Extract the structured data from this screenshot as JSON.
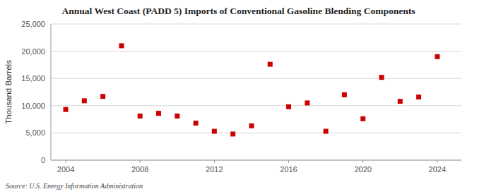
{
  "chart_data": {
    "type": "scatter",
    "title": "Annual West Coast (PADD 5) Imports of Conventional Gasoline Blending Components",
    "y_label": "Thousand Barrels",
    "source": "Source: U.S. Energy Information Administration",
    "x": [
      2004,
      2005,
      2006,
      2007,
      2008,
      2009,
      2010,
      2011,
      2012,
      2013,
      2014,
      2015,
      2016,
      2017,
      2018,
      2019,
      2020,
      2021,
      2022,
      2023,
      2024
    ],
    "values": [
      9300,
      10900,
      11700,
      21000,
      8100,
      8600,
      8100,
      6800,
      5300,
      4800,
      6300,
      17600,
      9800,
      10500,
      5300,
      12000,
      7600,
      15200,
      10800,
      11600,
      19000
    ],
    "color": "#cc0000",
    "marker": "square",
    "xlim": [
      2003.2,
      2025.3
    ],
    "ylim": [
      0,
      25000
    ],
    "xticks": [
      2004,
      2008,
      2012,
      2016,
      2020,
      2024
    ],
    "yticks": [
      0,
      {
        "value": 5000,
        "label": "5,000"
      },
      {
        "value": 10000,
        "label": "10,000"
      },
      {
        "value": 15000,
        "label": "15,000"
      },
      {
        "value": 20000,
        "label": "20,000"
      },
      {
        "value": 25000,
        "label": "25,000"
      }
    ],
    "grid": true
  }
}
